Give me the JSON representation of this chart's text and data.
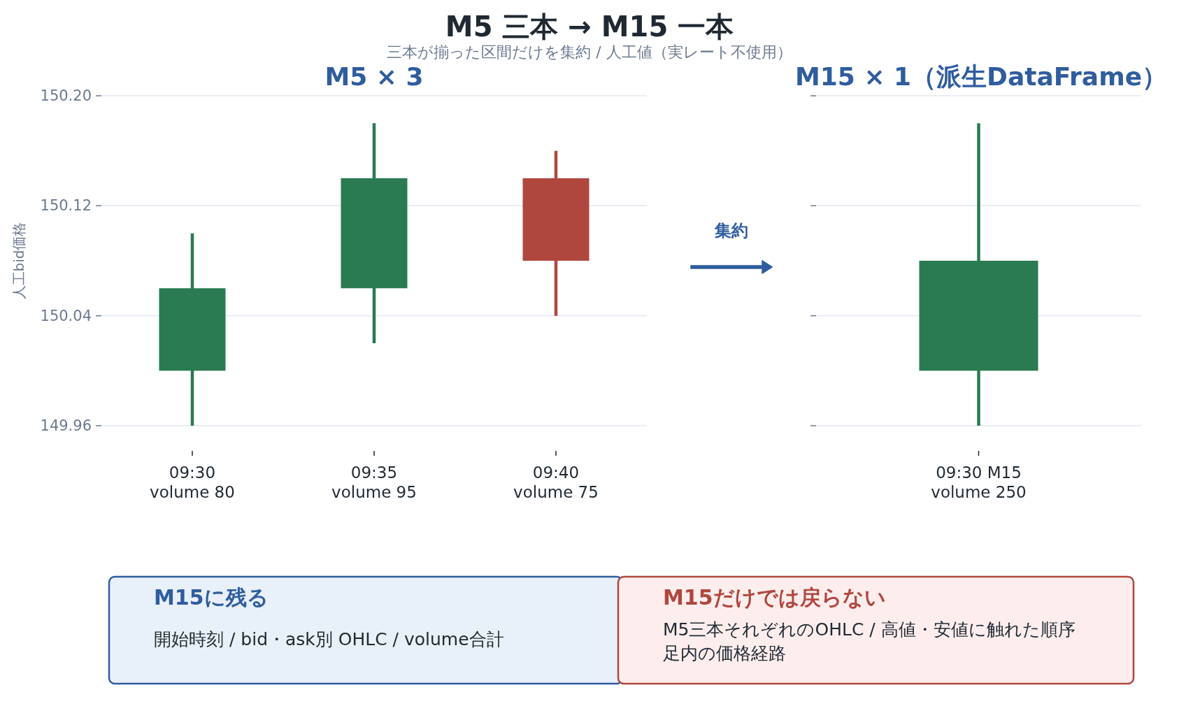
{
  "chart_data": [
    {
      "type": "other",
      "title": "M5 三本 → M15 一本",
      "subtitle": "三本が揃った区間だけを集約 / 人工値（実レート不使用）"
    },
    {
      "type": "candlestick",
      "title": "M5 × 3",
      "ylabel": "人工bid価格",
      "categories": [
        "09:30\nvolume 80",
        "09:35\nvolume 95",
        "09:40\nvolume 75"
      ],
      "ohlc": [
        [
          150.0,
          150.1,
          149.96,
          150.06
        ],
        [
          150.06,
          150.18,
          150.02,
          150.14
        ],
        [
          150.14,
          150.16,
          150.04,
          150.08
        ]
      ],
      "colors": [
        "#2a7a52",
        "#2a7a52",
        "#b0473f"
      ],
      "ylim": [
        149.96,
        150.2
      ],
      "yticks": [
        149.96,
        150.04,
        150.12,
        {
          "value": 150.2,
          "label": "150.20"
        }
      ],
      "grid": "y"
    },
    {
      "type": "candlestick",
      "title": "M15 × 1（派生DataFrame）",
      "categories": [
        "09:30 M15\nvolume 250"
      ],
      "ohlc": [
        [
          150.0,
          150.18,
          149.96,
          150.08
        ]
      ],
      "colors": [
        "#2a7a52"
      ],
      "ylim": [
        149.96,
        150.2
      ],
      "yticks": [
        {
          "value": 149.96,
          "label": null
        },
        {
          "value": 150.04,
          "label": null
        },
        {
          "value": 150.12,
          "label": null
        },
        {
          "value": 150.2,
          "label": null
        }
      ],
      "grid": "y",
      "tick_labels": "x",
      "annotations": [
        "集約"
      ]
    },
    {
      "type": "other",
      "title": "M15に残る",
      "annotations": [
        "開始時刻 / bid・ask別 OHLC / volume合計"
      ]
    },
    {
      "type": "other",
      "title": "M15だけでは戻らない",
      "annotations": [
        "M5三本それぞれのOHLC / 高値・安値に触れた順序",
        "足内の価格経路"
      ]
    }
  ]
}
